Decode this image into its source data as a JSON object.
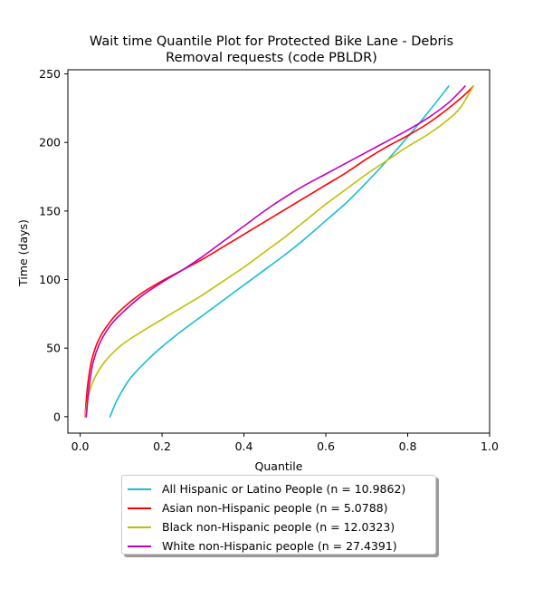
{
  "chart_data": {
    "type": "line",
    "title_line1": "Wait time Quantile Plot for Protected Bike Lane - Debris",
    "title_line2": "Removal  requests (code PBLDR)",
    "xlabel": "Quantile",
    "ylabel": "Time (days)",
    "xlim": [
      -0.03,
      1.0
    ],
    "ylim": [
      -12,
      253
    ],
    "xticks": [
      0.0,
      0.2,
      0.4,
      0.6,
      0.8,
      1.0
    ],
    "xtick_labels": [
      "0.0",
      "0.2",
      "0.4",
      "0.6",
      "0.8",
      "1.0"
    ],
    "yticks": [
      0,
      50,
      100,
      150,
      200,
      250
    ],
    "ytick_labels": [
      "0",
      "50",
      "100",
      "150",
      "200",
      "250"
    ],
    "grid": false,
    "legend_position": "below",
    "series": [
      {
        "name": "All Hispanic or Latino People (n = 10.9862)",
        "color": "#17becf",
        "x": [
          0.073,
          0.09,
          0.12,
          0.16,
          0.2,
          0.25,
          0.3,
          0.35,
          0.4,
          0.45,
          0.5,
          0.55,
          0.6,
          0.65,
          0.7,
          0.75,
          0.8,
          0.85,
          0.9
        ],
        "y": [
          0,
          12,
          27,
          40,
          51,
          63,
          74,
          85,
          96,
          107,
          118,
          130,
          143,
          156,
          171,
          187,
          204,
          222,
          241
        ]
      },
      {
        "name": "Asian non-Hispanic people (n = 5.0788)",
        "color": "#ff0000",
        "x": [
          0.012,
          0.018,
          0.028,
          0.045,
          0.07,
          0.1,
          0.15,
          0.2,
          0.25,
          0.3,
          0.35,
          0.4,
          0.45,
          0.5,
          0.55,
          0.6,
          0.65,
          0.7,
          0.75,
          0.8,
          0.85,
          0.9,
          0.94,
          0.96
        ],
        "y": [
          0,
          22,
          41,
          56,
          68,
          78,
          90,
          99,
          107,
          115,
          124,
          133,
          142,
          151,
          160,
          169,
          178,
          188,
          197,
          205,
          214,
          225,
          235,
          241
        ]
      },
      {
        "name": "Black non-Hispanic people (n = 12.0323)",
        "color": "#bfbf00",
        "x": [
          0.012,
          0.02,
          0.035,
          0.06,
          0.1,
          0.15,
          0.2,
          0.25,
          0.3,
          0.35,
          0.4,
          0.45,
          0.5,
          0.55,
          0.6,
          0.65,
          0.7,
          0.75,
          0.8,
          0.85,
          0.9,
          0.93,
          0.96
        ],
        "y": [
          0,
          15,
          28,
          40,
          52,
          62,
          71,
          80,
          89,
          99,
          109,
          120,
          131,
          143,
          155,
          166,
          177,
          187,
          197,
          206,
          217,
          226,
          241
        ]
      },
      {
        "name": "White non-Hispanic people (n = 27.4391)",
        "color": "#bf00bf",
        "x": [
          0.015,
          0.022,
          0.032,
          0.05,
          0.075,
          0.1,
          0.15,
          0.2,
          0.25,
          0.3,
          0.35,
          0.4,
          0.45,
          0.5,
          0.55,
          0.6,
          0.65,
          0.7,
          0.75,
          0.8,
          0.85,
          0.9,
          0.94
        ],
        "y": [
          0,
          22,
          40,
          55,
          67,
          75,
          88,
          98,
          107,
          117,
          128,
          139,
          150,
          160,
          169,
          177,
          185,
          193,
          201,
          209,
          218,
          229,
          241
        ]
      }
    ]
  }
}
